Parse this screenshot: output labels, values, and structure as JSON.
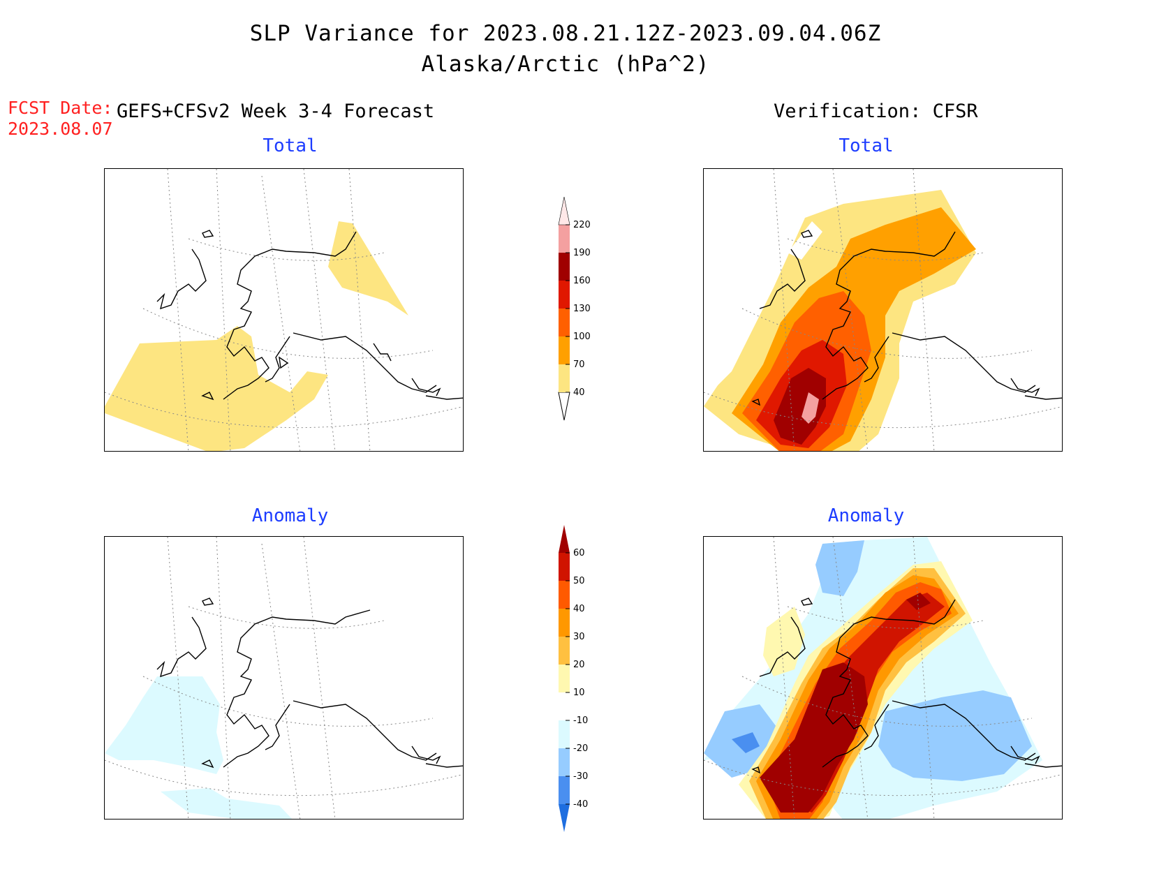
{
  "title": {
    "line1": "SLP Variance for 2023.08.21.12Z-2023.09.04.06Z",
    "line2": "Alaska/Arctic (hPa^2)"
  },
  "forecast": {
    "label": "FCST Date:",
    "date": "2023.08.07",
    "model": "GEFS+CFSv2 Week 3-4 Forecast"
  },
  "verification": {
    "label": "Verification: CFSR"
  },
  "panels": {
    "fcst_total": {
      "title": "Total"
    },
    "fcst_anomaly": {
      "title": "Anomaly"
    },
    "verif_total": {
      "title": "Total"
    },
    "verif_anomaly": {
      "title": "Anomaly"
    }
  },
  "colorbars": {
    "total": {
      "levels": [
        "40",
        "70",
        "100",
        "130",
        "160",
        "190",
        "220"
      ],
      "colors": [
        "#fde581",
        "#ffa000",
        "#ff6000",
        "#e01800",
        "#a00000",
        "#f4a0a0",
        "#ffe8e8"
      ]
    },
    "anomaly": {
      "levels": [
        "-40",
        "-30",
        "-20",
        "-10",
        "10",
        "20",
        "30",
        "40",
        "50",
        "60"
      ],
      "colors": [
        "#1e6ee0",
        "#4a8ff0",
        "#96ccff",
        "#dcfaff",
        "#ffffff",
        "#fff8b0",
        "#ffc040",
        "#ff9800",
        "#ff5a00",
        "#d01400",
        "#a00000"
      ]
    }
  },
  "colors": {
    "title_blue": "#1c3cff",
    "fcst_red": "#ff2020",
    "light_yellow": "#fde581",
    "light_cyan": "#dcfaff"
  }
}
